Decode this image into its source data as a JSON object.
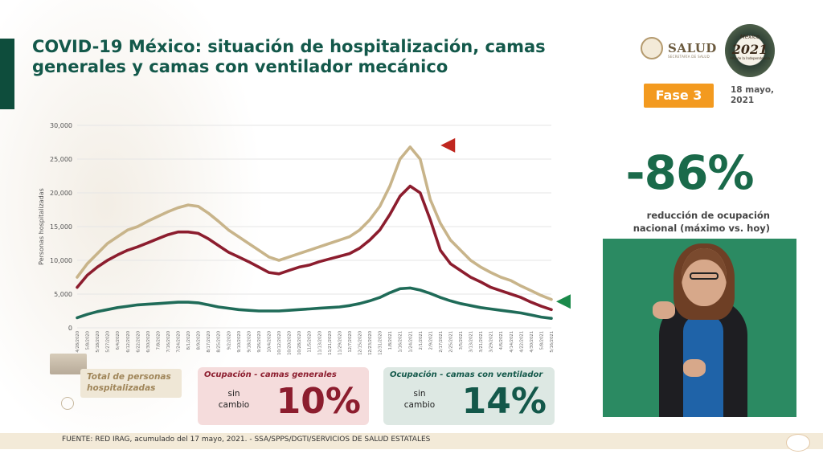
{
  "header": {
    "title": "COVID-19 México: situación de hospitalización, camas generales y camas con ventilador mecánico",
    "salud_logo": "SALUD",
    "salud_sub": "SECRETARÍA DE SALUD",
    "logo_2021": {
      "top": "México",
      "year": "2021",
      "sub": "Año de la Independencia"
    },
    "phase_badge": "Fase 3",
    "date": "18 mayo, 2021"
  },
  "kpi": {
    "value": "-86%",
    "label": "reducción de ocupación nacional (máximo vs. hoy)"
  },
  "legend": {
    "total_label": "Total de personas hospitalizadas"
  },
  "cards": {
    "general": {
      "title": "Ocupación - camas generales",
      "status": "sin cambio",
      "value": "10%"
    },
    "ventilator": {
      "title": "Ocupación - camas con ventilador",
      "status": "sin cambio",
      "value": "14%"
    }
  },
  "footer": {
    "source": "FUENTE: RED IRAG, acumulado del 17 mayo, 2021. -   SSA/SPPS/DGTI/SERVICIOS DE SALUD ESTATALES"
  },
  "colors": {
    "total": "#c8b48a",
    "general": "#8c1d2e",
    "ventilator": "#1f6b58",
    "accent": "#f39a1f",
    "brand_green": "#13584a"
  },
  "chart_data": {
    "type": "line",
    "ylabel": "Personas hospitalizadas",
    "ylim": [
      0,
      30000
    ],
    "yticks": [
      "0",
      "5,000",
      "10,000",
      "15,000",
      "20,000",
      "25,000",
      "30,000"
    ],
    "x_tick_labels": [
      "4/28/2020",
      "5/8/2020",
      "5/18/2020",
      "5/27/2020",
      "6/4/2020",
      "6/12/2020",
      "6/22/2020",
      "6/30/2020",
      "7/8/2020",
      "7/16/2020",
      "7/24/2020",
      "8/1/2020",
      "8/9/2020",
      "8/17/2020",
      "8/25/2020",
      "9/2/2020",
      "9/10/2020",
      "9/18/2020",
      "9/26/2020",
      "10/4/2020",
      "10/12/2020",
      "10/20/2020",
      "10/28/2020",
      "11/5/2020",
      "11/13/2020",
      "11/21/2020",
      "11/29/2020",
      "12/7/2020",
      "12/15/2020",
      "12/23/2020",
      "12/31/2020",
      "1/8/2021",
      "1/16/2021",
      "1/24/2021",
      "2/1/2021",
      "2/9/2021",
      "2/17/2021",
      "2/25/2021",
      "3/5/2021",
      "3/13/2021",
      "3/21/2021",
      "3/29/2021",
      "4/6/2021",
      "4/14/2021",
      "4/22/2021",
      "4/30/2021",
      "5/8/2021",
      "5/16/2021"
    ],
    "grid": true,
    "series": [
      {
        "name": "Total de personas hospitalizadas",
        "color": "#c8b48a",
        "values": [
          7500,
          9500,
          11000,
          12500,
          13500,
          14500,
          15000,
          15800,
          16500,
          17200,
          17800,
          18200,
          18000,
          17000,
          15800,
          14500,
          13500,
          12500,
          11500,
          10500,
          10000,
          10500,
          11000,
          11500,
          12000,
          12500,
          13000,
          13500,
          14500,
          16000,
          18000,
          21000,
          25000,
          26800,
          25000,
          19000,
          15500,
          13000,
          11500,
          10000,
          9000,
          8200,
          7500,
          7000,
          6200,
          5500,
          4800,
          4200
        ]
      },
      {
        "name": "Camas generales",
        "color": "#8c1d2e",
        "values": [
          6000,
          7800,
          9000,
          10000,
          10800,
          11500,
          12000,
          12600,
          13200,
          13800,
          14200,
          14200,
          14000,
          13200,
          12200,
          11200,
          10500,
          9800,
          9000,
          8200,
          8000,
          8500,
          9000,
          9300,
          9800,
          10200,
          10600,
          11000,
          11800,
          13000,
          14500,
          16800,
          19500,
          21000,
          20000,
          16000,
          11500,
          9500,
          8500,
          7500,
          6800,
          6000,
          5500,
          5000,
          4500,
          3800,
          3200,
          2700
        ]
      },
      {
        "name": "Camas con ventilador",
        "color": "#1f6b58",
        "values": [
          1500,
          2000,
          2400,
          2700,
          3000,
          3200,
          3400,
          3500,
          3600,
          3700,
          3800,
          3800,
          3700,
          3400,
          3100,
          2900,
          2700,
          2600,
          2500,
          2500,
          2500,
          2600,
          2700,
          2800,
          2900,
          3000,
          3100,
          3300,
          3600,
          4000,
          4500,
          5200,
          5800,
          5900,
          5600,
          5100,
          4500,
          4000,
          3600,
          3300,
          3000,
          2800,
          2600,
          2400,
          2200,
          1900,
          1600,
          1400
        ]
      }
    ]
  }
}
